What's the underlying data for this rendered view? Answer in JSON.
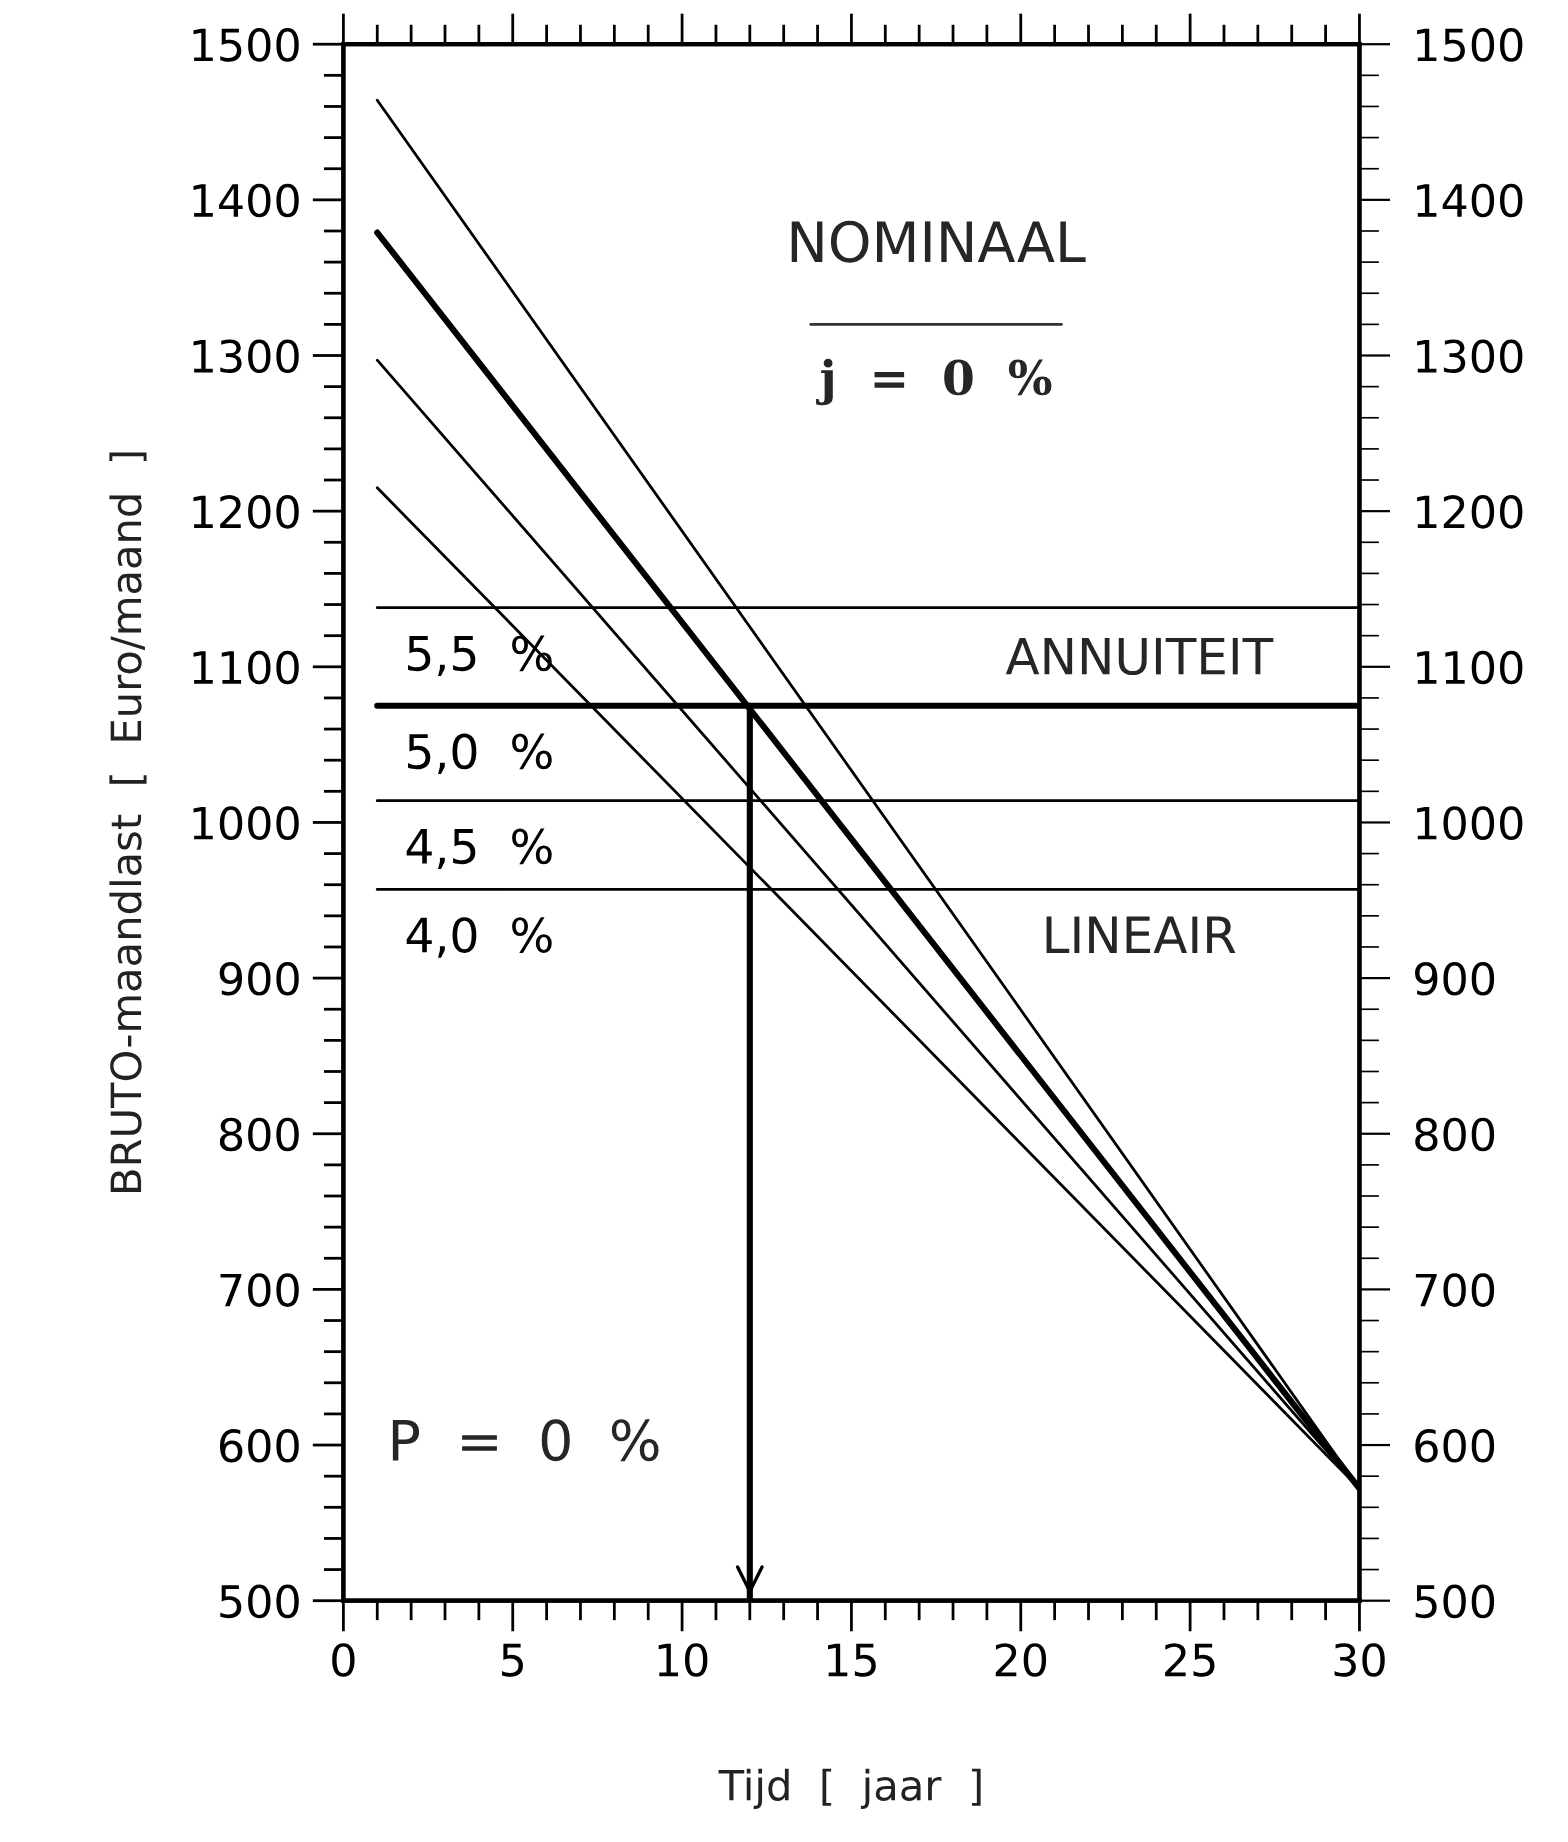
{
  "chart_data": {
    "type": "line",
    "xlabel": "Tijd  [  jaar  ]",
    "ylabel": "BRUTO-maandlast  [  Euro/maand  ]",
    "annotations": [
      "NOMINAAL",
      "j  =  0  %",
      "ANNUITEIT",
      "LINEAIR",
      "P  =  0  %"
    ],
    "xlim": [
      0,
      30
    ],
    "ylim": [
      500,
      1500
    ],
    "y2lim": [
      500,
      1500
    ],
    "xticks": [
      0,
      {
        "value": 1,
        "label": null
      },
      {
        "value": 2,
        "label": null
      },
      {
        "value": 3,
        "label": null
      },
      {
        "value": 4,
        "label": null
      },
      5,
      {
        "value": 6,
        "label": null
      },
      {
        "value": 7,
        "label": null
      },
      {
        "value": 8,
        "label": null
      },
      {
        "value": 9,
        "label": null
      },
      10,
      {
        "value": 11,
        "label": null
      },
      {
        "value": 12,
        "label": null
      },
      {
        "value": 13,
        "label": null
      },
      {
        "value": 14,
        "label": null
      },
      15,
      {
        "value": 16,
        "label": null
      },
      {
        "value": 17,
        "label": null
      },
      {
        "value": 18,
        "label": null
      },
      {
        "value": 19,
        "label": null
      },
      20,
      {
        "value": 21,
        "label": null
      },
      {
        "value": 22,
        "label": null
      },
      {
        "value": 23,
        "label": null
      },
      {
        "value": 24,
        "label": null
      },
      25,
      {
        "value": 26,
        "label": null
      },
      {
        "value": 27,
        "label": null
      },
      {
        "value": 28,
        "label": null
      },
      {
        "value": 29,
        "label": null
      },
      30
    ],
    "yticks": [
      500,
      {
        "value": 520,
        "label": null
      },
      {
        "value": 540,
        "label": null
      },
      {
        "value": 560,
        "label": null
      },
      {
        "value": 580,
        "label": null
      },
      600,
      {
        "value": 620,
        "label": null
      },
      {
        "value": 640,
        "label": null
      },
      {
        "value": 660,
        "label": null
      },
      {
        "value": 680,
        "label": null
      },
      700,
      {
        "value": 720,
        "label": null
      },
      {
        "value": 740,
        "label": null
      },
      {
        "value": 760,
        "label": null
      },
      {
        "value": 780,
        "label": null
      },
      800,
      {
        "value": 820,
        "label": null
      },
      {
        "value": 840,
        "label": null
      },
      {
        "value": 860,
        "label": null
      },
      {
        "value": 880,
        "label": null
      },
      900,
      {
        "value": 920,
        "label": null
      },
      {
        "value": 940,
        "label": null
      },
      {
        "value": 960,
        "label": null
      },
      {
        "value": 980,
        "label": null
      },
      1000,
      {
        "value": 1020,
        "label": null
      },
      {
        "value": 1040,
        "label": null
      },
      {
        "value": 1060,
        "label": null
      },
      {
        "value": 1080,
        "label": null
      },
      1100,
      {
        "value": 1120,
        "label": null
      },
      {
        "value": 1140,
        "label": null
      },
      {
        "value": 1160,
        "label": null
      },
      {
        "value": 1180,
        "label": null
      },
      1200,
      {
        "value": 1220,
        "label": null
      },
      {
        "value": 1240,
        "label": null
      },
      {
        "value": 1260,
        "label": null
      },
      {
        "value": 1280,
        "label": null
      },
      1300,
      {
        "value": 1320,
        "label": null
      },
      {
        "value": 1340,
        "label": null
      },
      {
        "value": 1360,
        "label": null
      },
      {
        "value": 1380,
        "label": null
      },
      1400,
      {
        "value": 1420,
        "label": null
      },
      {
        "value": 1440,
        "label": null
      },
      {
        "value": 1460,
        "label": null
      },
      {
        "value": 1480,
        "label": null
      },
      1500
    ],
    "y2ticks": [
      500,
      600,
      700,
      800,
      900,
      1000,
      1100,
      1200,
      1300,
      1400,
      1500
    ],
    "grid": false,
    "legend": "left",
    "marker": "none",
    "line_style": "solid",
    "series": [
      {
        "name": "5,5  %",
        "color": "#000000",
        "x": [
          1,
          30
        ],
        "values": [
          1138,
          1138
        ]
      },
      {
        "name": "5,0  %",
        "color": "#000000",
        "x": [
          1,
          30
        ],
        "values": [
          1075,
          1075
        ]
      },
      {
        "name": "4,5  %",
        "color": "#000000",
        "x": [
          1,
          30
        ],
        "values": [
          1014,
          1014
        ]
      },
      {
        "name": "4,0  %",
        "color": "#000000",
        "x": [
          1,
          30
        ],
        "values": [
          957,
          957
        ]
      },
      {
        "color": "#000000",
        "x": [
          1,
          30
        ],
        "values": [
          1464,
          572
        ]
      },
      {
        "color": "#000000",
        "x": [
          1,
          30
        ],
        "values": [
          1379,
          572
        ]
      },
      {
        "color": "#000000",
        "x": [
          1,
          30
        ],
        "values": [
          1297,
          572
        ]
      },
      {
        "color": "#000000",
        "x": [
          1,
          30
        ],
        "values": [
          1215,
          572
        ]
      },
      {
        "color": "#000000",
        "x": [
          12,
          12
        ],
        "values": [
          1075,
          500
        ]
      }
    ]
  }
}
